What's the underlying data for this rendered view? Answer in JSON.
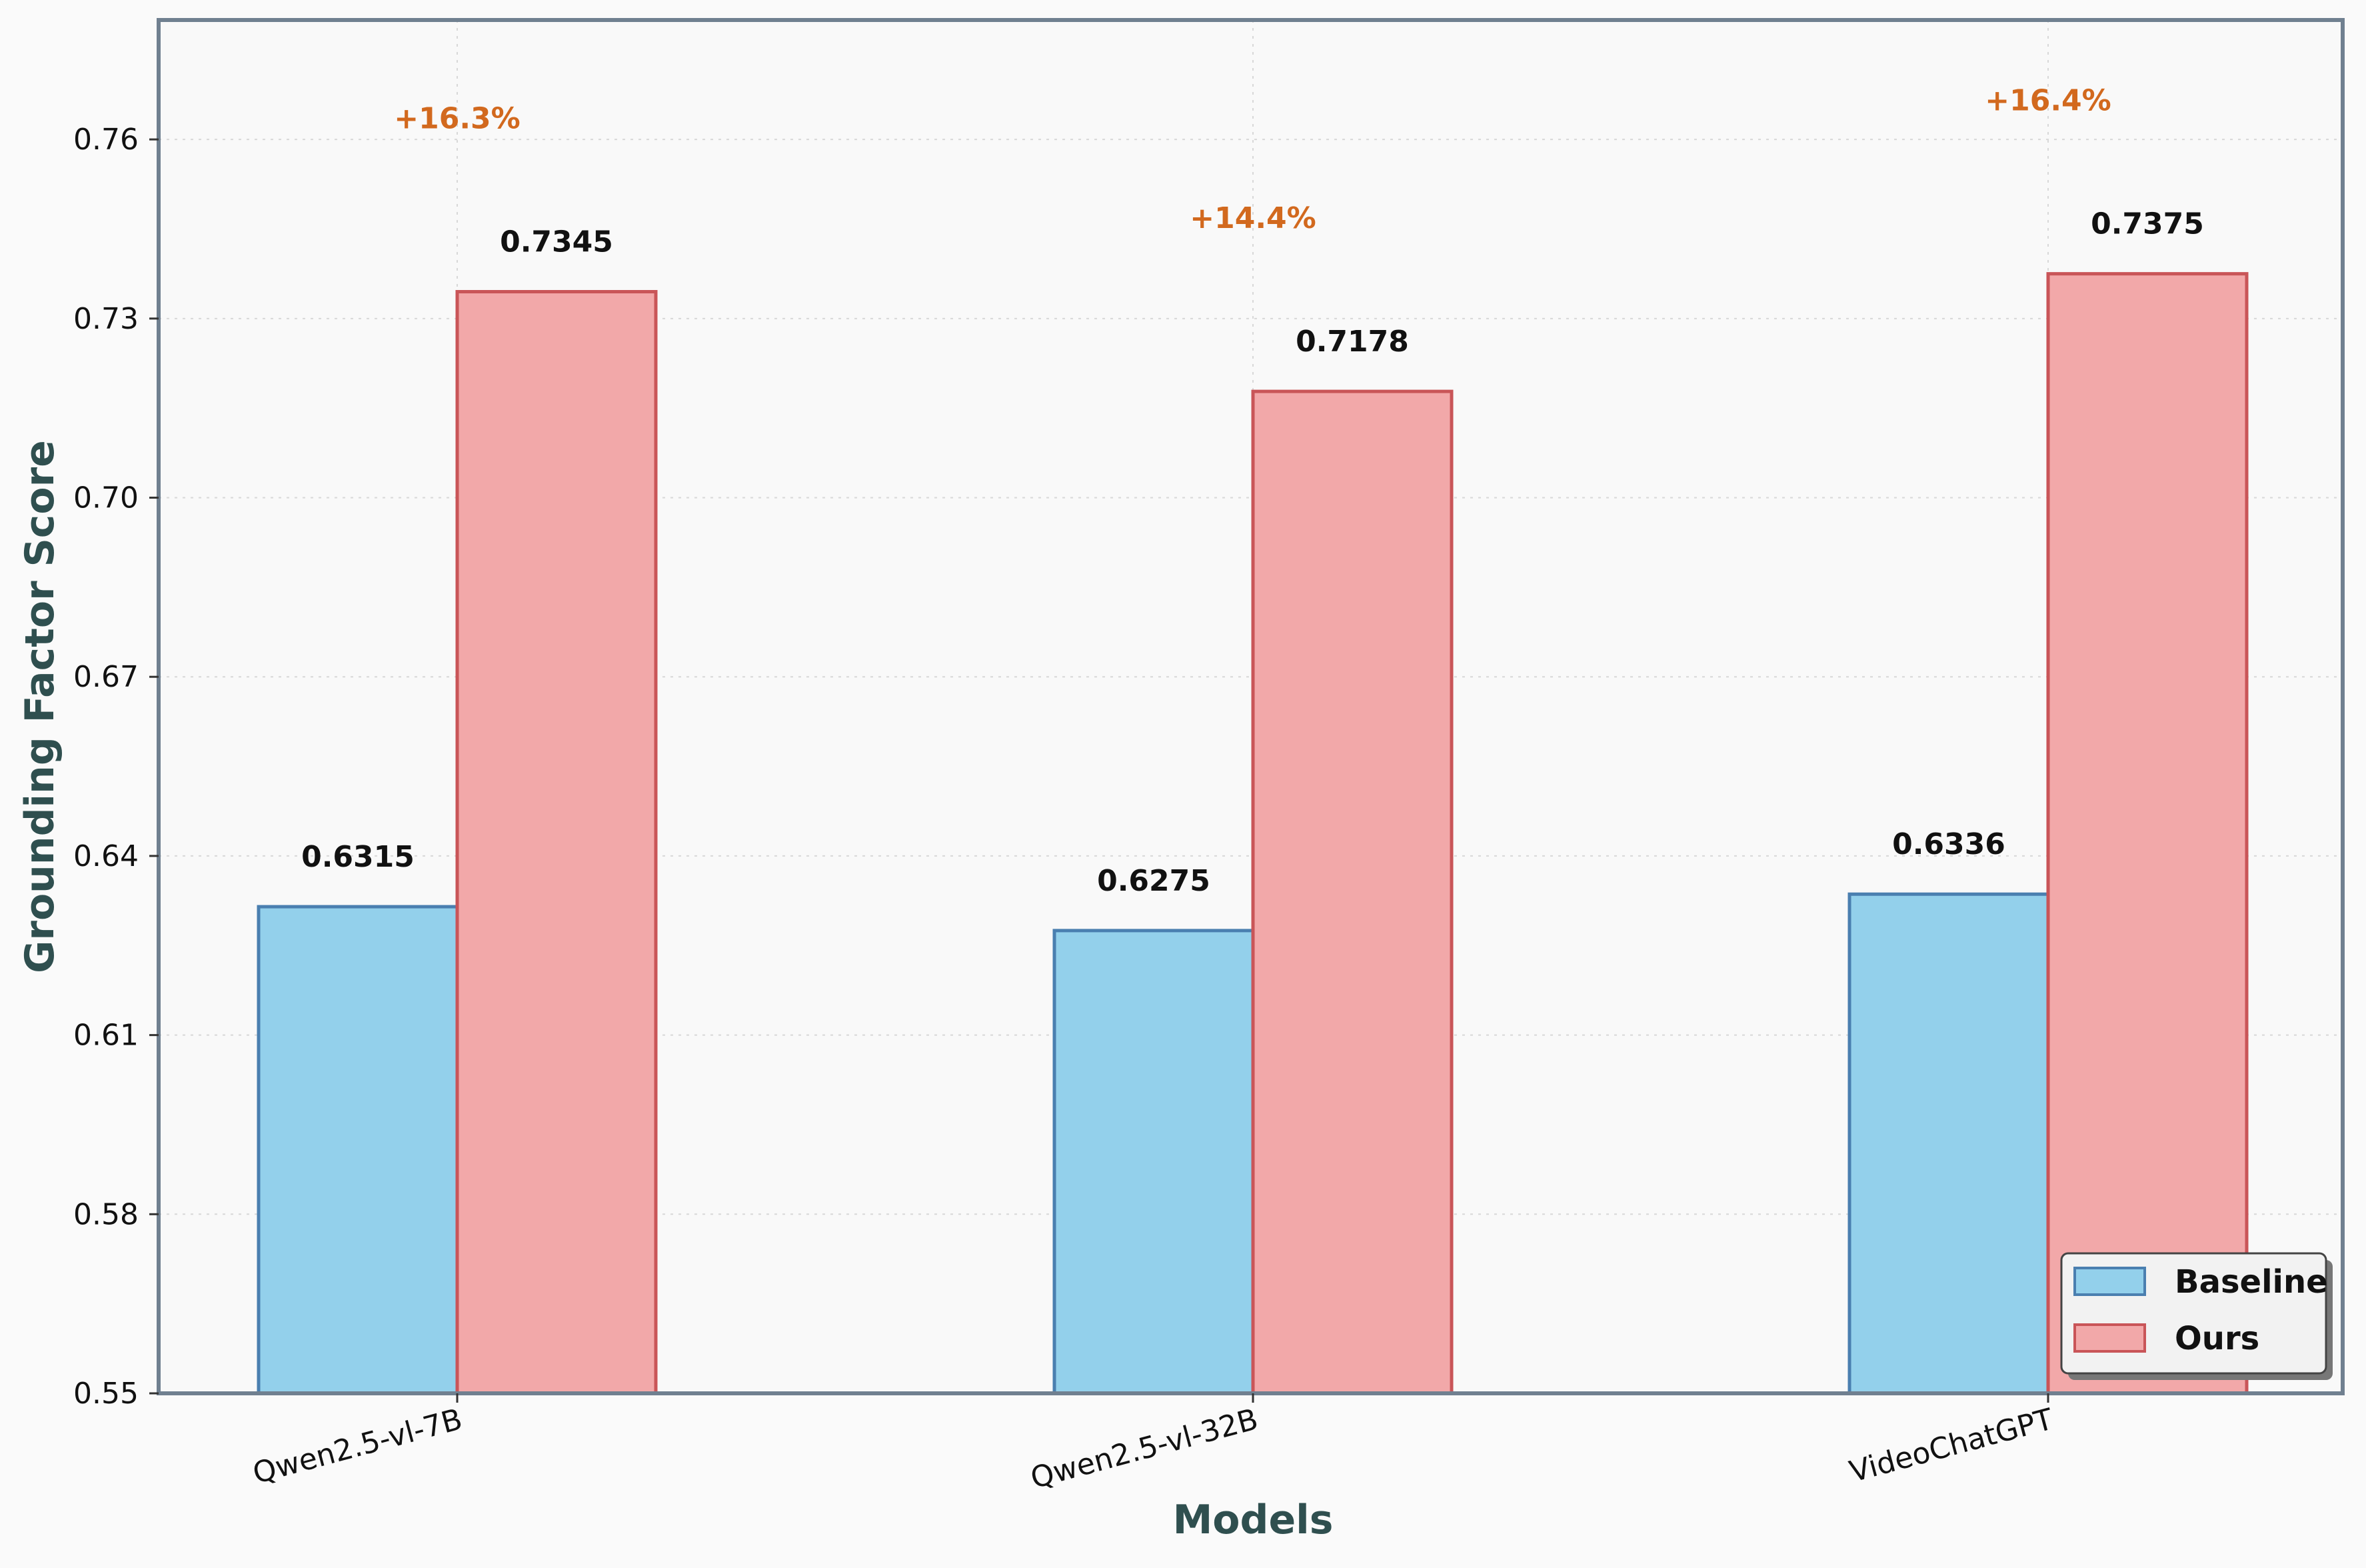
{
  "chart_data": {
    "type": "bar",
    "title": "",
    "xlabel": "Models",
    "ylabel": "Grounding Factor Score",
    "categories": [
      "Qwen2.5-vl-7B",
      "Qwen2.5-vl-32B",
      "VideoChatGPT"
    ],
    "series": [
      {
        "name": "Baseline",
        "values": [
          0.6315,
          0.6275,
          0.6336
        ],
        "color": "#93d0eb",
        "edge": "#4a7fb0"
      },
      {
        "name": "Ours",
        "values": [
          0.7345,
          0.7178,
          0.7375
        ],
        "color": "#f2a8a9",
        "edge": "#c95558"
      }
    ],
    "value_labels": {
      "Baseline": [
        "0.6315",
        "0.6275",
        "0.6336"
      ],
      "Ours": [
        "0.7345",
        "0.7178",
        "0.7375"
      ]
    },
    "improvements": [
      "+16.3%",
      "+14.4%",
      "+16.4%"
    ],
    "ylim": [
      0.55,
      0.78
    ],
    "yticks": [
      0.55,
      0.58,
      0.61,
      0.64,
      0.67,
      0.7,
      0.73,
      0.76
    ],
    "ytick_labels": [
      "0.55",
      "0.58",
      "0.61",
      "0.64",
      "0.67",
      "0.70",
      "0.73",
      "0.76"
    ],
    "grid": true,
    "legend": {
      "position": "lower-right",
      "entries": [
        "Baseline",
        "Ours"
      ]
    },
    "colors": {
      "frame": "#708090",
      "background": "#f9f9f9",
      "axis_title": "#2f4f4f",
      "delta": "#d2691e"
    }
  }
}
